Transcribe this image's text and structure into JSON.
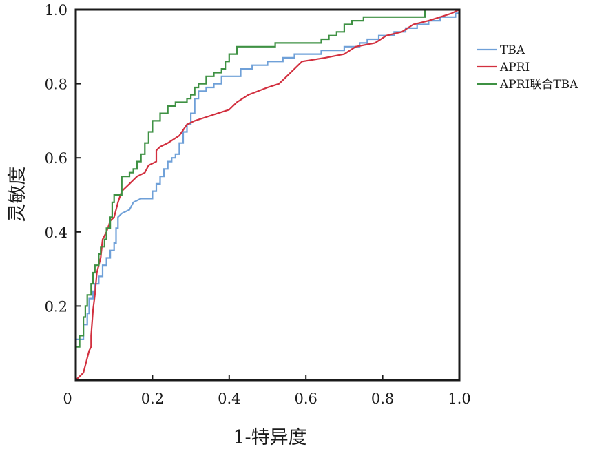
{
  "chart_data": {
    "type": "line",
    "title": "",
    "xlabel": "1-特异度",
    "ylabel": "灵敏度",
    "xlim": [
      0,
      1
    ],
    "ylim": [
      0,
      1
    ],
    "x_ticks": [
      "0",
      "0.2",
      "0.4",
      "0.6",
      "0.8",
      "1.0"
    ],
    "y_ticks": [
      "0.2",
      "0.4",
      "0.6",
      "0.8",
      "1.0"
    ],
    "grid": false,
    "legend_position": "right",
    "series": [
      {
        "name": "TBA",
        "color": "#6fa0d8",
        "points": [
          [
            0.0,
            0.0
          ],
          [
            0.0,
            0.11
          ],
          [
            0.02,
            0.11
          ],
          [
            0.02,
            0.15
          ],
          [
            0.03,
            0.15
          ],
          [
            0.03,
            0.18
          ],
          [
            0.035,
            0.18
          ],
          [
            0.035,
            0.22
          ],
          [
            0.045,
            0.22
          ],
          [
            0.045,
            0.24
          ],
          [
            0.05,
            0.24
          ],
          [
            0.05,
            0.26
          ],
          [
            0.06,
            0.26
          ],
          [
            0.06,
            0.28
          ],
          [
            0.07,
            0.28
          ],
          [
            0.07,
            0.31
          ],
          [
            0.08,
            0.31
          ],
          [
            0.08,
            0.33
          ],
          [
            0.09,
            0.33
          ],
          [
            0.09,
            0.35
          ],
          [
            0.1,
            0.35
          ],
          [
            0.1,
            0.37
          ],
          [
            0.105,
            0.37
          ],
          [
            0.105,
            0.41
          ],
          [
            0.11,
            0.41
          ],
          [
            0.11,
            0.44
          ],
          [
            0.12,
            0.45
          ],
          [
            0.14,
            0.46
          ],
          [
            0.15,
            0.48
          ],
          [
            0.17,
            0.49
          ],
          [
            0.2,
            0.49
          ],
          [
            0.2,
            0.51
          ],
          [
            0.21,
            0.51
          ],
          [
            0.21,
            0.53
          ],
          [
            0.22,
            0.53
          ],
          [
            0.22,
            0.55
          ],
          [
            0.23,
            0.55
          ],
          [
            0.23,
            0.57
          ],
          [
            0.24,
            0.57
          ],
          [
            0.24,
            0.59
          ],
          [
            0.25,
            0.59
          ],
          [
            0.25,
            0.6
          ],
          [
            0.26,
            0.6
          ],
          [
            0.26,
            0.61
          ],
          [
            0.27,
            0.61
          ],
          [
            0.27,
            0.64
          ],
          [
            0.28,
            0.64
          ],
          [
            0.28,
            0.67
          ],
          [
            0.29,
            0.67
          ],
          [
            0.29,
            0.69
          ],
          [
            0.3,
            0.69
          ],
          [
            0.3,
            0.72
          ],
          [
            0.31,
            0.72
          ],
          [
            0.31,
            0.76
          ],
          [
            0.32,
            0.76
          ],
          [
            0.32,
            0.78
          ],
          [
            0.34,
            0.78
          ],
          [
            0.34,
            0.79
          ],
          [
            0.36,
            0.79
          ],
          [
            0.36,
            0.8
          ],
          [
            0.38,
            0.8
          ],
          [
            0.38,
            0.82
          ],
          [
            0.43,
            0.82
          ],
          [
            0.43,
            0.84
          ],
          [
            0.46,
            0.84
          ],
          [
            0.46,
            0.85
          ],
          [
            0.5,
            0.85
          ],
          [
            0.5,
            0.86
          ],
          [
            0.54,
            0.86
          ],
          [
            0.54,
            0.87
          ],
          [
            0.57,
            0.87
          ],
          [
            0.57,
            0.88
          ],
          [
            0.64,
            0.88
          ],
          [
            0.64,
            0.89
          ],
          [
            0.7,
            0.89
          ],
          [
            0.7,
            0.9
          ],
          [
            0.74,
            0.9
          ],
          [
            0.74,
            0.91
          ],
          [
            0.76,
            0.91
          ],
          [
            0.76,
            0.92
          ],
          [
            0.79,
            0.92
          ],
          [
            0.79,
            0.93
          ],
          [
            0.83,
            0.93
          ],
          [
            0.83,
            0.94
          ],
          [
            0.86,
            0.94
          ],
          [
            0.86,
            0.95
          ],
          [
            0.89,
            0.95
          ],
          [
            0.89,
            0.96
          ],
          [
            0.92,
            0.96
          ],
          [
            0.92,
            0.97
          ],
          [
            0.95,
            0.97
          ],
          [
            0.95,
            0.98
          ],
          [
            0.99,
            0.98
          ],
          [
            0.99,
            0.99
          ],
          [
            1.0,
            0.99
          ]
        ]
      },
      {
        "name": "APRI",
        "color": "#d2303f",
        "points": [
          [
            0.0,
            0.0
          ],
          [
            0.01,
            0.01
          ],
          [
            0.02,
            0.02
          ],
          [
            0.025,
            0.04
          ],
          [
            0.03,
            0.06
          ],
          [
            0.035,
            0.08
          ],
          [
            0.04,
            0.09
          ],
          [
            0.04,
            0.12
          ],
          [
            0.045,
            0.19
          ],
          [
            0.05,
            0.23
          ],
          [
            0.055,
            0.29
          ],
          [
            0.06,
            0.31
          ],
          [
            0.065,
            0.33
          ],
          [
            0.07,
            0.38
          ],
          [
            0.08,
            0.4
          ],
          [
            0.09,
            0.43
          ],
          [
            0.1,
            0.44
          ],
          [
            0.11,
            0.48
          ],
          [
            0.12,
            0.51
          ],
          [
            0.14,
            0.53
          ],
          [
            0.16,
            0.55
          ],
          [
            0.18,
            0.56
          ],
          [
            0.19,
            0.58
          ],
          [
            0.21,
            0.59
          ],
          [
            0.21,
            0.62
          ],
          [
            0.22,
            0.63
          ],
          [
            0.24,
            0.64
          ],
          [
            0.27,
            0.66
          ],
          [
            0.29,
            0.69
          ],
          [
            0.31,
            0.7
          ],
          [
            0.34,
            0.71
          ],
          [
            0.37,
            0.72
          ],
          [
            0.4,
            0.73
          ],
          [
            0.42,
            0.75
          ],
          [
            0.45,
            0.77
          ],
          [
            0.5,
            0.79
          ],
          [
            0.53,
            0.8
          ],
          [
            0.55,
            0.82
          ],
          [
            0.57,
            0.84
          ],
          [
            0.59,
            0.86
          ],
          [
            0.65,
            0.87
          ],
          [
            0.7,
            0.88
          ],
          [
            0.73,
            0.9
          ],
          [
            0.78,
            0.91
          ],
          [
            0.81,
            0.93
          ],
          [
            0.85,
            0.94
          ],
          [
            0.88,
            0.96
          ],
          [
            0.92,
            0.97
          ],
          [
            0.95,
            0.98
          ],
          [
            0.98,
            0.99
          ],
          [
            1.0,
            1.0
          ]
        ]
      },
      {
        "name": "APRI联合TBA",
        "color": "#3e9143",
        "points": [
          [
            0.0,
            0.0
          ],
          [
            0.0,
            0.09
          ],
          [
            0.01,
            0.09
          ],
          [
            0.01,
            0.12
          ],
          [
            0.02,
            0.12
          ],
          [
            0.02,
            0.17
          ],
          [
            0.025,
            0.17
          ],
          [
            0.025,
            0.2
          ],
          [
            0.03,
            0.2
          ],
          [
            0.03,
            0.23
          ],
          [
            0.04,
            0.23
          ],
          [
            0.04,
            0.26
          ],
          [
            0.045,
            0.26
          ],
          [
            0.045,
            0.29
          ],
          [
            0.05,
            0.29
          ],
          [
            0.05,
            0.31
          ],
          [
            0.06,
            0.31
          ],
          [
            0.06,
            0.34
          ],
          [
            0.065,
            0.34
          ],
          [
            0.065,
            0.36
          ],
          [
            0.075,
            0.36
          ],
          [
            0.075,
            0.38
          ],
          [
            0.08,
            0.38
          ],
          [
            0.08,
            0.41
          ],
          [
            0.09,
            0.41
          ],
          [
            0.09,
            0.44
          ],
          [
            0.095,
            0.44
          ],
          [
            0.095,
            0.48
          ],
          [
            0.1,
            0.48
          ],
          [
            0.1,
            0.5
          ],
          [
            0.12,
            0.5
          ],
          [
            0.12,
            0.55
          ],
          [
            0.14,
            0.55
          ],
          [
            0.14,
            0.56
          ],
          [
            0.15,
            0.56
          ],
          [
            0.15,
            0.57
          ],
          [
            0.16,
            0.57
          ],
          [
            0.16,
            0.59
          ],
          [
            0.17,
            0.59
          ],
          [
            0.17,
            0.61
          ],
          [
            0.18,
            0.61
          ],
          [
            0.18,
            0.64
          ],
          [
            0.19,
            0.64
          ],
          [
            0.19,
            0.67
          ],
          [
            0.2,
            0.67
          ],
          [
            0.2,
            0.7
          ],
          [
            0.22,
            0.7
          ],
          [
            0.22,
            0.72
          ],
          [
            0.24,
            0.72
          ],
          [
            0.24,
            0.74
          ],
          [
            0.26,
            0.74
          ],
          [
            0.26,
            0.75
          ],
          [
            0.29,
            0.75
          ],
          [
            0.29,
            0.76
          ],
          [
            0.3,
            0.76
          ],
          [
            0.3,
            0.77
          ],
          [
            0.31,
            0.77
          ],
          [
            0.31,
            0.79
          ],
          [
            0.32,
            0.79
          ],
          [
            0.32,
            0.8
          ],
          [
            0.34,
            0.8
          ],
          [
            0.34,
            0.82
          ],
          [
            0.36,
            0.82
          ],
          [
            0.36,
            0.83
          ],
          [
            0.38,
            0.83
          ],
          [
            0.38,
            0.84
          ],
          [
            0.39,
            0.84
          ],
          [
            0.39,
            0.86
          ],
          [
            0.4,
            0.86
          ],
          [
            0.4,
            0.88
          ],
          [
            0.42,
            0.88
          ],
          [
            0.42,
            0.9
          ],
          [
            0.52,
            0.9
          ],
          [
            0.52,
            0.91
          ],
          [
            0.64,
            0.91
          ],
          [
            0.64,
            0.92
          ],
          [
            0.66,
            0.92
          ],
          [
            0.66,
            0.93
          ],
          [
            0.68,
            0.93
          ],
          [
            0.68,
            0.94
          ],
          [
            0.7,
            0.94
          ],
          [
            0.7,
            0.96
          ],
          [
            0.72,
            0.96
          ],
          [
            0.72,
            0.97
          ],
          [
            0.75,
            0.97
          ],
          [
            0.75,
            0.98
          ],
          [
            0.91,
            0.98
          ],
          [
            0.91,
            1.0
          ],
          [
            1.0,
            1.0
          ]
        ]
      }
    ]
  }
}
